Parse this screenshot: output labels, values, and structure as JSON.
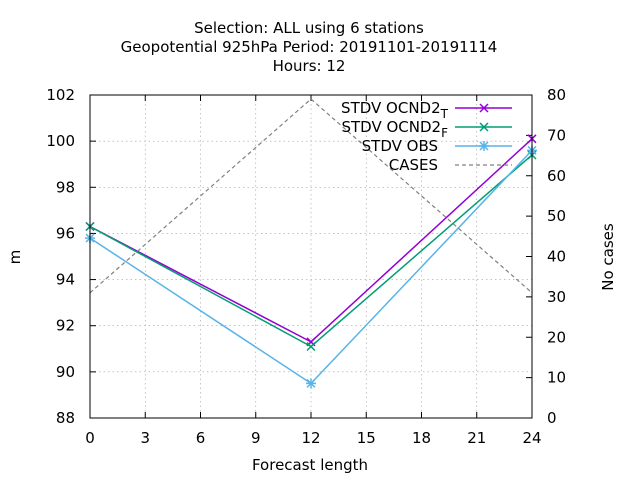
{
  "chart_data": {
    "type": "line",
    "title_lines": [
      "Selection: ALL using     6 stations",
      "Geopotential 925hPa   Period: 20191101-20191114",
      "Hours:  12"
    ],
    "xlabel": "Forecast length",
    "ylabel": "m",
    "y2label": "No cases",
    "x": [
      0,
      12,
      24
    ],
    "xlim": [
      0,
      24
    ],
    "ylim": [
      88,
      102
    ],
    "y2lim": [
      0,
      80
    ],
    "xticks": [
      "0",
      "3",
      "6",
      "9",
      "12",
      "15",
      "18",
      "21",
      "24"
    ],
    "yticks": [
      "88",
      "90",
      "92",
      "94",
      "96",
      "98",
      "100",
      "102"
    ],
    "y2ticks": [
      "0",
      "10",
      "20",
      "30",
      "40",
      "50",
      "60",
      "70",
      "80"
    ],
    "grid": true,
    "legend_position": "top-right",
    "series": [
      {
        "name": "STDV OCND2",
        "name_sub": "T",
        "axis": "left",
        "color": "#9400d3",
        "marker": "x-cross",
        "values": [
          96.3,
          91.3,
          100.1
        ]
      },
      {
        "name": "STDV OCND2",
        "name_sub": "F",
        "axis": "left",
        "color": "#009e73",
        "marker": "x-cross",
        "values": [
          96.3,
          91.1,
          99.4
        ]
      },
      {
        "name": "STDV OBS",
        "name_sub": "",
        "axis": "left",
        "color": "#56b4e9",
        "marker": "star",
        "values": [
          95.8,
          89.5,
          99.6
        ]
      },
      {
        "name": "CASES",
        "name_sub": "",
        "axis": "right",
        "color": "#808080",
        "dashed": true,
        "marker": "none",
        "values": [
          31,
          79,
          31
        ]
      }
    ]
  }
}
